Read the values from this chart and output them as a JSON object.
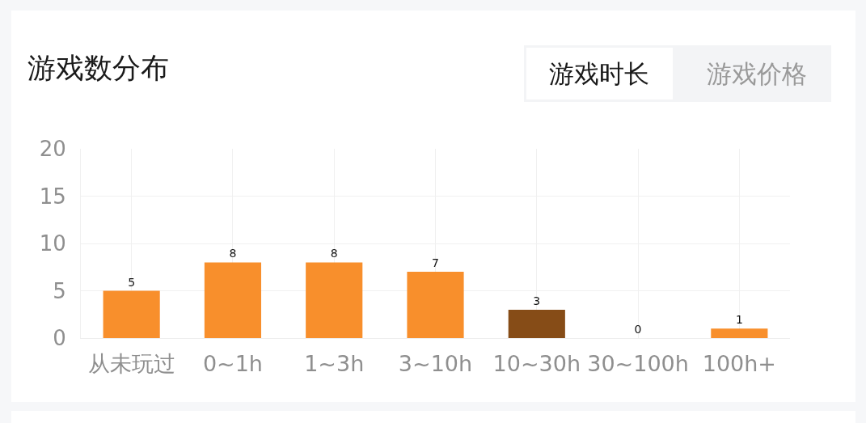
{
  "chart_data": {
    "type": "bar",
    "title": "游戏数分布",
    "annotations": [
      "游戏时长",
      "游戏价格"
    ],
    "categories": [
      "从未玩过",
      "0~1h",
      "1~3h",
      "3~10h",
      "10~30h",
      "30~100h",
      "100h+"
    ],
    "values": [
      5,
      8,
      8,
      7,
      3,
      0,
      1
    ],
    "colors": [
      "#f88f2c",
      "#f88f2c",
      "#f88f2c",
      "#f88f2c",
      "#864c17",
      "#f88f2c",
      "#f88f2c"
    ],
    "ylim": [
      0,
      20
    ],
    "yticks": [
      0,
      5,
      10,
      15,
      20
    ],
    "grid": true,
    "data_labels": true
  }
}
